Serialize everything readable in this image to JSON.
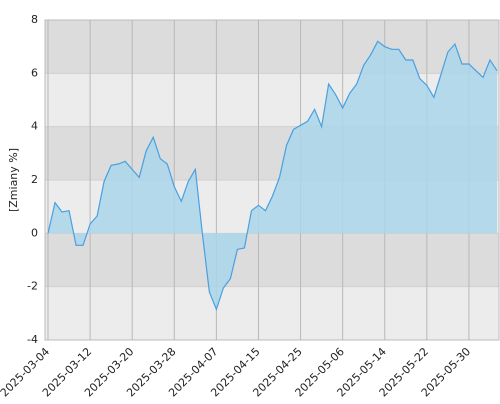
{
  "chart_data": {
    "type": "area",
    "y_label": "[Zmiany %]",
    "categories": [
      "2025-03-04",
      null,
      null,
      null,
      null,
      null,
      "2025-03-12",
      null,
      null,
      null,
      null,
      null,
      "2025-03-20",
      null,
      null,
      null,
      null,
      null,
      "2025-03-28",
      null,
      null,
      null,
      null,
      null,
      "2025-04-07",
      null,
      null,
      null,
      null,
      null,
      "2025-04-15",
      null,
      null,
      null,
      null,
      null,
      "2025-04-25",
      null,
      null,
      null,
      null,
      null,
      "2025-05-06",
      null,
      null,
      null,
      null,
      null,
      "2025-05-14",
      null,
      null,
      null,
      null,
      null,
      "2025-05-22",
      null,
      null,
      null,
      null,
      null,
      "2025-05-30",
      null,
      null,
      null,
      null
    ],
    "values": [
      0,
      1.15,
      0.8,
      0.85,
      -0.45,
      -0.45,
      0.35,
      0.65,
      1.95,
      2.55,
      2.6,
      2.7,
      2.4,
      2.1,
      3.1,
      3.6,
      2.8,
      2.6,
      1.75,
      1.2,
      1.95,
      2.4,
      0,
      -2.2,
      -2.85,
      -2.05,
      -1.7,
      -0.6,
      -0.55,
      0.85,
      1.05,
      0.85,
      1.4,
      2.1,
      3.3,
      3.9,
      4.05,
      4.2,
      4.65,
      4.0,
      5.6,
      5.2,
      4.7,
      5.25,
      5.6,
      6.3,
      6.7,
      7.2,
      7.0,
      6.9,
      6.9,
      6.5,
      6.5,
      5.8,
      5.55,
      5.1,
      5.95,
      6.8,
      7.1,
      6.35,
      6.35,
      6.1,
      5.85,
      6.5,
      6.1
    ],
    "color": "#4a9fe0",
    "fill": "#a9d6ea",
    "ylim": [
      -4,
      8
    ],
    "yticks": [
      -4,
      -2,
      0,
      2,
      4,
      6,
      8
    ],
    "grid": true,
    "bands": [
      "#dcdcdc",
      "#ececec"
    ]
  }
}
